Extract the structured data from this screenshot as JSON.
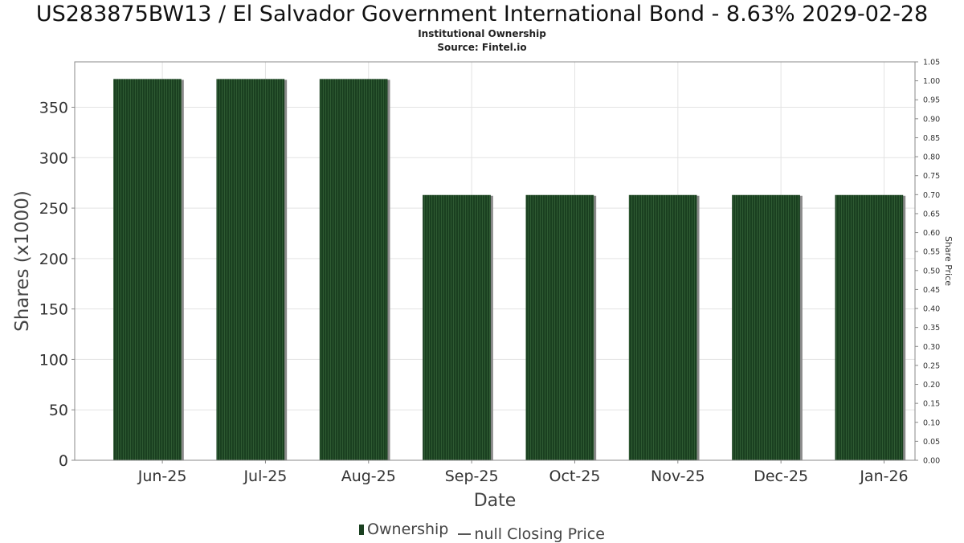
{
  "title": "US283875BW13 / El Salvador Government International Bond - 8.63% 2029-02-28",
  "subtitle": "Institutional Ownership",
  "source": "Source: Fintel.io",
  "colors": {
    "bar": "#1a4020",
    "bar_shadow": "#8a8a8a",
    "grid": "#e3e3e3",
    "frame": "#888888"
  },
  "legend": {
    "ownership": "Ownership",
    "price": "null Closing Price"
  },
  "chart_data": {
    "type": "bar",
    "title": "US283875BW13 / El Salvador Government International Bond - 8.63% 2029-02-28",
    "xlabel": "Date",
    "ylabel": "Shares (x1000)",
    "y2label": "Share Price",
    "categories": [
      "Jun-25",
      "Jul-25",
      "Aug-25",
      "Sep-25",
      "Oct-25",
      "Nov-25",
      "Dec-25",
      "Jan-26"
    ],
    "series": [
      {
        "name": "Ownership",
        "values": [
          378,
          378,
          378,
          263,
          263,
          263,
          263,
          263
        ]
      }
    ],
    "ylim": [
      0,
      395
    ],
    "yticks": [
      0,
      50,
      100,
      150,
      200,
      250,
      300,
      350
    ],
    "y2lim": [
      0,
      1.05
    ],
    "y2ticks": [
      "0.00",
      "0.05",
      "0.10",
      "0.15",
      "0.20",
      "0.25",
      "0.30",
      "0.35",
      "0.40",
      "0.45",
      "0.50",
      "0.55",
      "0.60",
      "0.65",
      "0.70",
      "0.75",
      "0.80",
      "0.85",
      "0.90",
      "0.95",
      "1.00",
      "1.05"
    ],
    "grid": true,
    "legend_position": "bottom"
  }
}
